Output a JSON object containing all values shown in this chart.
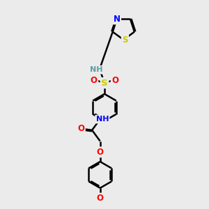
{
  "bg_color": "#ebebeb",
  "atom_colors": {
    "C": "#000000",
    "N": "#0000ff",
    "O": "#ff0000",
    "S_sulfonamide": "#cccc00",
    "S_thiazole": "#cccc00",
    "H_n": "#5f9ea0",
    "H_n2": "#0000ff"
  },
  "bond_color": "#000000",
  "bond_width": 1.8,
  "dbo": 0.07,
  "figsize": [
    3.0,
    3.0
  ],
  "dpi": 100,
  "xlim": [
    0,
    10
  ],
  "ylim": [
    0,
    14
  ]
}
